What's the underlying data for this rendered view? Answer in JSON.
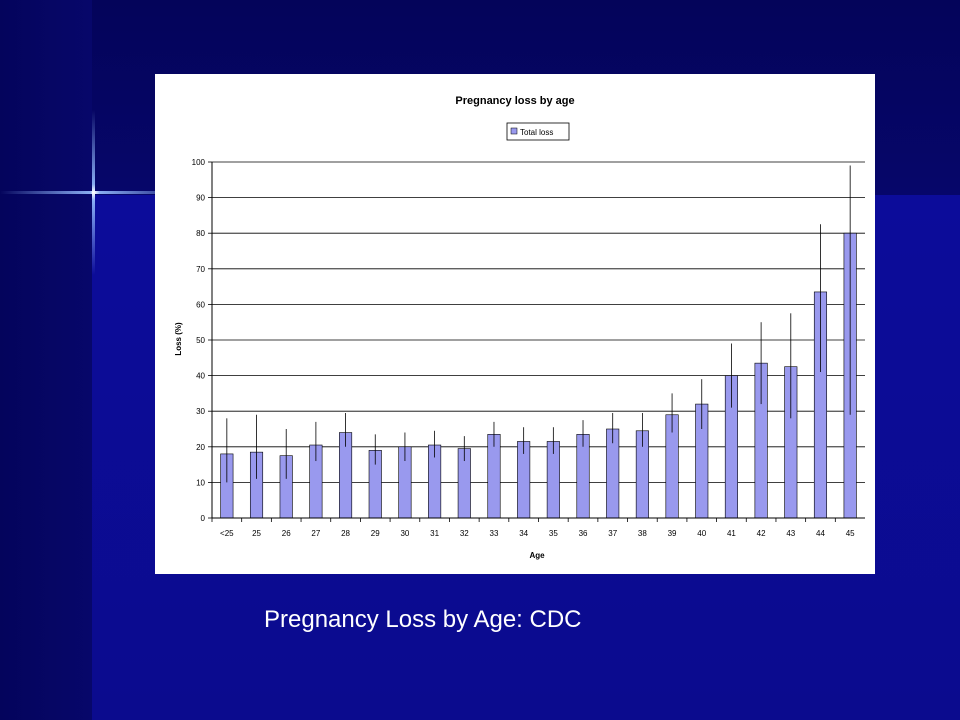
{
  "slide": {
    "caption": "Pregnancy Loss by Age: CDC",
    "colors": {
      "background": "#0a0a78",
      "caption": "#ffffff"
    }
  },
  "chart_data": {
    "type": "bar",
    "title": "Pregnancy loss by age",
    "xlabel": "Age",
    "ylabel": "Loss (%)",
    "ylim": [
      0,
      100
    ],
    "yticks": [
      0,
      10,
      20,
      30,
      40,
      50,
      60,
      70,
      80,
      90,
      100
    ],
    "grid": true,
    "legend_position": "top-center",
    "bar_color": "#9999ee",
    "categories": [
      "<25",
      "25",
      "26",
      "27",
      "28",
      "29",
      "30",
      "31",
      "32",
      "33",
      "34",
      "35",
      "36",
      "37",
      "38",
      "39",
      "40",
      "41",
      "42",
      "43",
      "44",
      "45"
    ],
    "series": [
      {
        "name": "Total loss",
        "values": [
          18,
          18.5,
          17.5,
          20.5,
          24,
          19,
          20,
          20.5,
          19.5,
          23.5,
          21.5,
          21.5,
          23.5,
          25,
          24.5,
          29,
          32,
          40,
          43.5,
          42.5,
          63.5,
          80
        ],
        "error_upper": [
          28,
          29,
          25,
          27,
          29.5,
          23.5,
          24,
          24.5,
          23,
          27,
          25.5,
          25.5,
          27.5,
          29.5,
          29.5,
          35,
          39,
          49,
          55,
          57.5,
          82.5,
          99
        ],
        "error_lower": [
          10,
          11,
          11,
          16,
          20,
          15,
          16,
          17,
          16,
          20,
          18,
          18,
          20,
          21,
          20,
          24,
          25,
          31,
          32,
          28,
          41,
          29
        ]
      }
    ]
  }
}
